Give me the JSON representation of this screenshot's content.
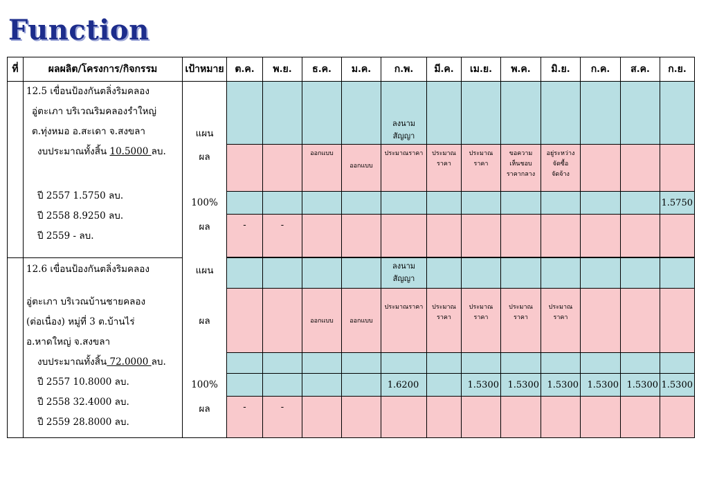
{
  "title": "Function",
  "headers": {
    "no": "ที่",
    "project": "ผลผลิต/โครงการ/กิจกรรม",
    "target": "เป้าหมาย",
    "months": [
      "ต.ค.",
      "พ.ย.",
      "ธ.ค.",
      "ม.ค.",
      "ก.พ.",
      "มี.ค.",
      "เม.ย.",
      "พ.ค.",
      "มิ.ย.",
      "ก.ค.",
      "ส.ค.",
      "ก.ย."
    ]
  },
  "p1": {
    "line1": "12.5 เขื่อนป้องกันตลิ่งริมคลอง",
    "line2": "อู่ตะเภา บริเวณริมคลองรำใหญ่",
    "line3": "ต.ทุ่งหมอ  อ.สะเดา จ.สงขลา",
    "budget_prefix": "งบประมาณทั้งสิ้น ",
    "budget_value": "10.5000 ",
    "budget_unit": "ลบ.",
    "y2557": "ปี 2557    1.5750      ลบ.",
    "y2558": "ปี 2558    8.9250      ลบ.",
    "y2559": "ปี 2559      -           ลบ.",
    "plan": "แผน",
    "result": "ผล",
    "pct": "100%",
    "result2": "ผล",
    "sign_1": "ลงนาม",
    "sign_2": "สัญญา",
    "design_dec": "ออกแบบ",
    "design_jan": "ออกแบบ",
    "feb_result": "ประมาณราคา",
    "mar_1": "ประมาณ",
    "mar_2": "ราคา",
    "apr_1": "ประมาณ",
    "apr_2": "ราคา",
    "may_1": "ขอความ",
    "may_2": "เห็นชอบ",
    "may_3": "ราคากลาง",
    "jun_1": "อยู่ระหว่าง",
    "jun_2": "จัดซื้อ",
    "jun_3": "จัดจ้าง",
    "sep_value": "1.5750",
    "dash_oct": "-",
    "dash_nov": "-"
  },
  "p2": {
    "line1": "12.6 เขื่อนป้องกันตลิ่งริมคลอง",
    "line2": "อู่ตะเภา  บริเวณบ้านชายคลอง",
    "line3": "(ต่อเนื่อง) หมู่ที่ 3  ต.บ้านไร่",
    "line4": "อ.หาดใหญ่  จ.สงขลา",
    "budget_prefix": "งบประมาณทั้งสิ้น",
    "budget_value": " 72.0000 ",
    "budget_unit": "ลบ.",
    "y2557": "ปี 2557    10.8000     ลบ.",
    "y2558": "ปี 2558    32.4000     ลบ.",
    "y2559": "ปี 2559    28.8000     ลบ.",
    "plan": "แผน",
    "result": "ผล",
    "pct": "100%",
    "result2": "ผล",
    "sign_1": "ลงนาม",
    "sign_2": "สัญญา",
    "design_dec": "ออกแบบ",
    "design_jan": "ออกแบบ",
    "feb_result": "ประมาณราคา",
    "mar_1": "ประมาณ",
    "mar_2": "ราคา",
    "apr_1": "ประมาณ",
    "apr_2": "ราคา",
    "may_1": "ประมาณ",
    "may_2": "ราคา",
    "jun_1": "ประมาณ",
    "jun_2": "ราคา",
    "values": {
      "feb": "1.6200",
      "apr": "1.5300",
      "may": "1.5300",
      "jun": "1.5300",
      "jul": "1.5300",
      "aug": "1.5300",
      "sep": "1.5300"
    },
    "dash_oct": "-",
    "dash_nov": "-"
  },
  "colors": {
    "plan_row": "#b8dfe3",
    "result_row": "#f9c9cc",
    "title": "#1d2d8c"
  }
}
